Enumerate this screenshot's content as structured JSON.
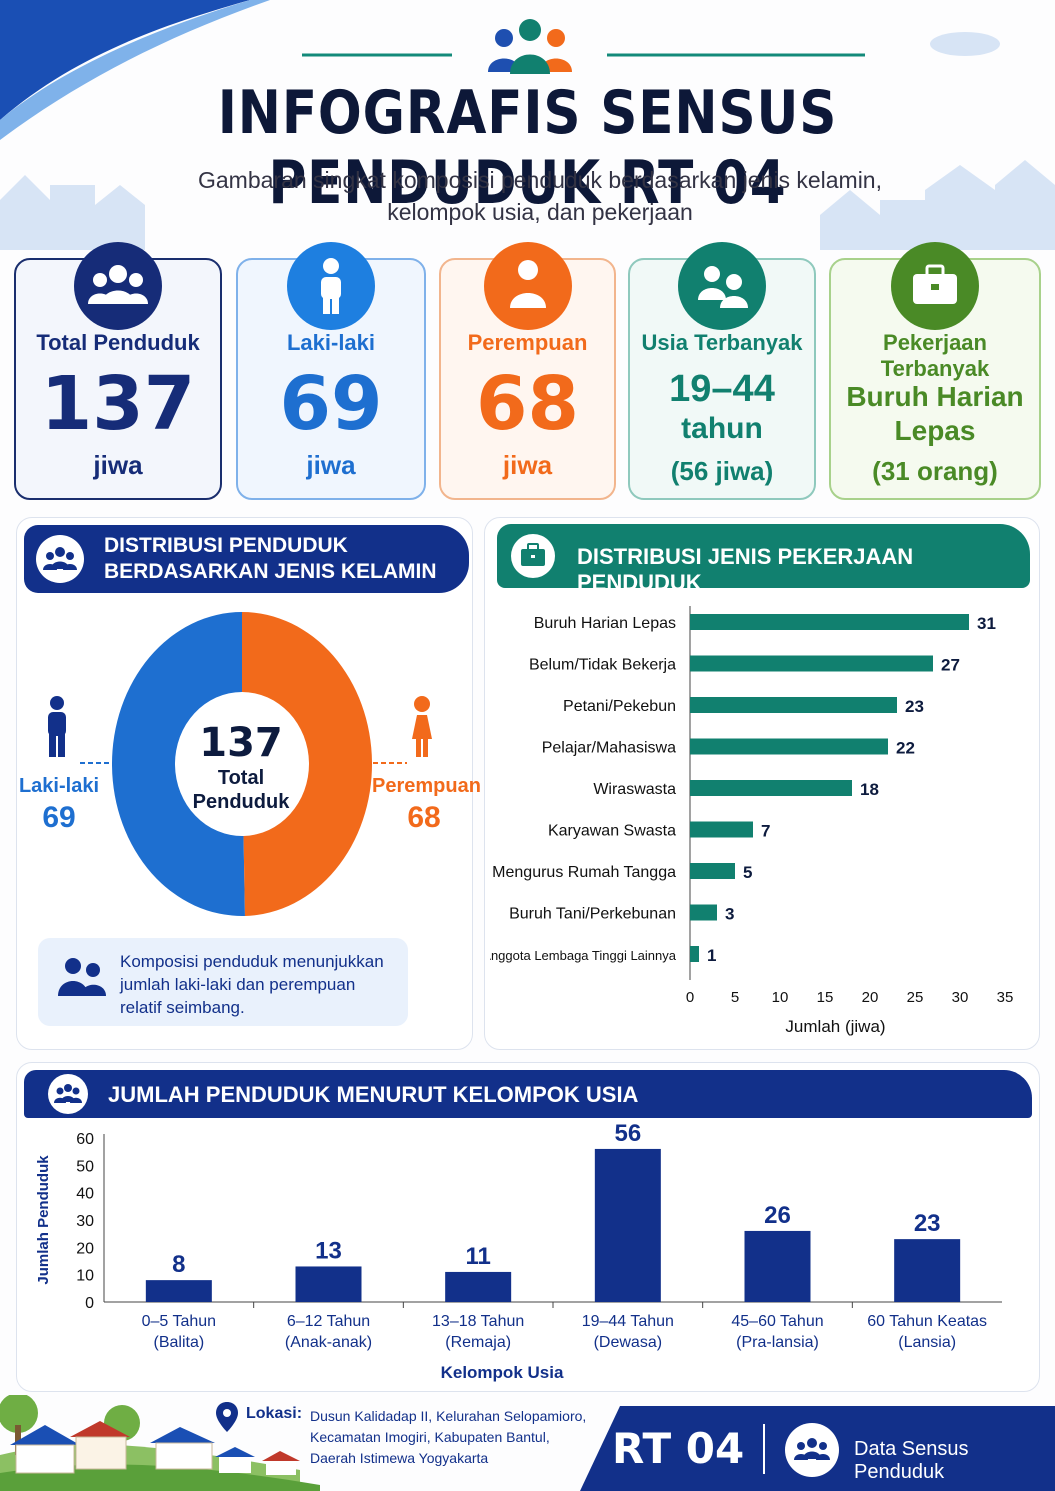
{
  "title": "INFOGRAFIS SENSUS PENDUDUK RT 04",
  "subtitle_line1": "Gambaran singkat komposisi penduduk berdasarkan jenis kelamin,",
  "subtitle_line2": "kelompok usia, dan pekerjaan",
  "colors": {
    "navy": "#12308a",
    "blue": "#1e6fd0",
    "orange": "#f26a1b",
    "teal": "#11806f",
    "green": "#4a8a26"
  },
  "cards": {
    "total": {
      "label": "Total Penduduk",
      "value": "137",
      "unit": "jiwa",
      "icon": "group-icon"
    },
    "male": {
      "label": "Laki-laki",
      "value": "69",
      "unit": "jiwa",
      "icon": "male-person-icon"
    },
    "female": {
      "label": "Perempuan",
      "value": "68",
      "unit": "jiwa",
      "icon": "female-person-icon"
    },
    "age": {
      "label": "Usia Terbanyak",
      "value1": "19–44",
      "value2": "tahun",
      "note": "(56 jiwa)",
      "icon": "two-people-icon"
    },
    "job": {
      "label": "Pekerjaan Terbanyak",
      "value1": "Buruh Harian",
      "value2": "Lepas",
      "note": "(31 orang)",
      "icon": "briefcase-icon"
    }
  },
  "gender_panel": {
    "heading1": "DISTRIBUSI PENDUDUK",
    "heading2": "BERDASARKAN JENIS KELAMIN",
    "center_value": "137",
    "center_label1": "Total",
    "center_label2": "Penduduk",
    "male_label": "Laki-laki",
    "male_value": "69",
    "female_label": "Perempuan",
    "female_value": "68",
    "note_line1": "Komposisi penduduk menunjukkan",
    "note_line2": "jumlah laki-laki dan perempuan",
    "note_line3": "relatif seimbang."
  },
  "job_panel": {
    "heading": "DISTRIBUSI JENIS PEKERJAAN PENDUDUK"
  },
  "age_panel": {
    "heading": "JUMLAH PENDUDUK MENURUT KELOMPOK USIA"
  },
  "chart_data": [
    {
      "type": "pie",
      "categories": [
        "Laki-laki",
        "Perempuan"
      ],
      "values": [
        69,
        68
      ],
      "colors": [
        "#1e6fd0",
        "#f26a1b"
      ]
    },
    {
      "type": "bar",
      "orientation": "horizontal",
      "categories": [
        "Buruh Harian Lepas",
        "Belum/Tidak Bekerja",
        "Petani/Pekebun",
        "Pelajar/Mahasiswa",
        "Wiraswasta",
        "Karyawan Swasta",
        "Mengurus Rumah Tangga",
        "Buruh Tani/Perkebunan",
        "Anggota Lembaga Tinggi Lainnya"
      ],
      "values": [
        31,
        27,
        23,
        22,
        18,
        7,
        5,
        3,
        1
      ],
      "xlabel": "Jumlah (jiwa)",
      "xlim": [
        0,
        35
      ],
      "ticks": [
        "0",
        "5",
        "10",
        "15",
        "20",
        "25",
        "30",
        "35"
      ],
      "color": "#11806f"
    },
    {
      "type": "bar",
      "categories": [
        [
          "0–5 Tahun",
          "(Balita)"
        ],
        [
          "6–12 Tahun",
          "(Anak-anak)"
        ],
        [
          "13–18 Tahun",
          "(Remaja)"
        ],
        [
          "19–44 Tahun",
          "(Dewasa)"
        ],
        [
          "45–60 Tahun",
          "(Pra-lansia)"
        ],
        [
          "60 Tahun Keatas",
          "(Lansia)"
        ]
      ],
      "values": [
        8,
        13,
        11,
        56,
        26,
        23
      ],
      "xlabel": "Kelompok Usia",
      "ylabel": "Jumlah Penduduk",
      "ylim": [
        0,
        60
      ],
      "ticks": [
        "0",
        "10",
        "20",
        "30",
        "40",
        "50",
        "60"
      ],
      "color": "#12308a"
    }
  ],
  "footer": {
    "location_label": "Lokasi:",
    "location_line1": "Dusun Kalidadap II, Kelurahan Selopamioro,",
    "location_line2": "Kecamatan Imogiri, Kabupaten Bantul,",
    "location_line3": "Daerah Istimewa Yogyakarta",
    "rt": "RT 04",
    "source": "Data Sensus Penduduk"
  }
}
